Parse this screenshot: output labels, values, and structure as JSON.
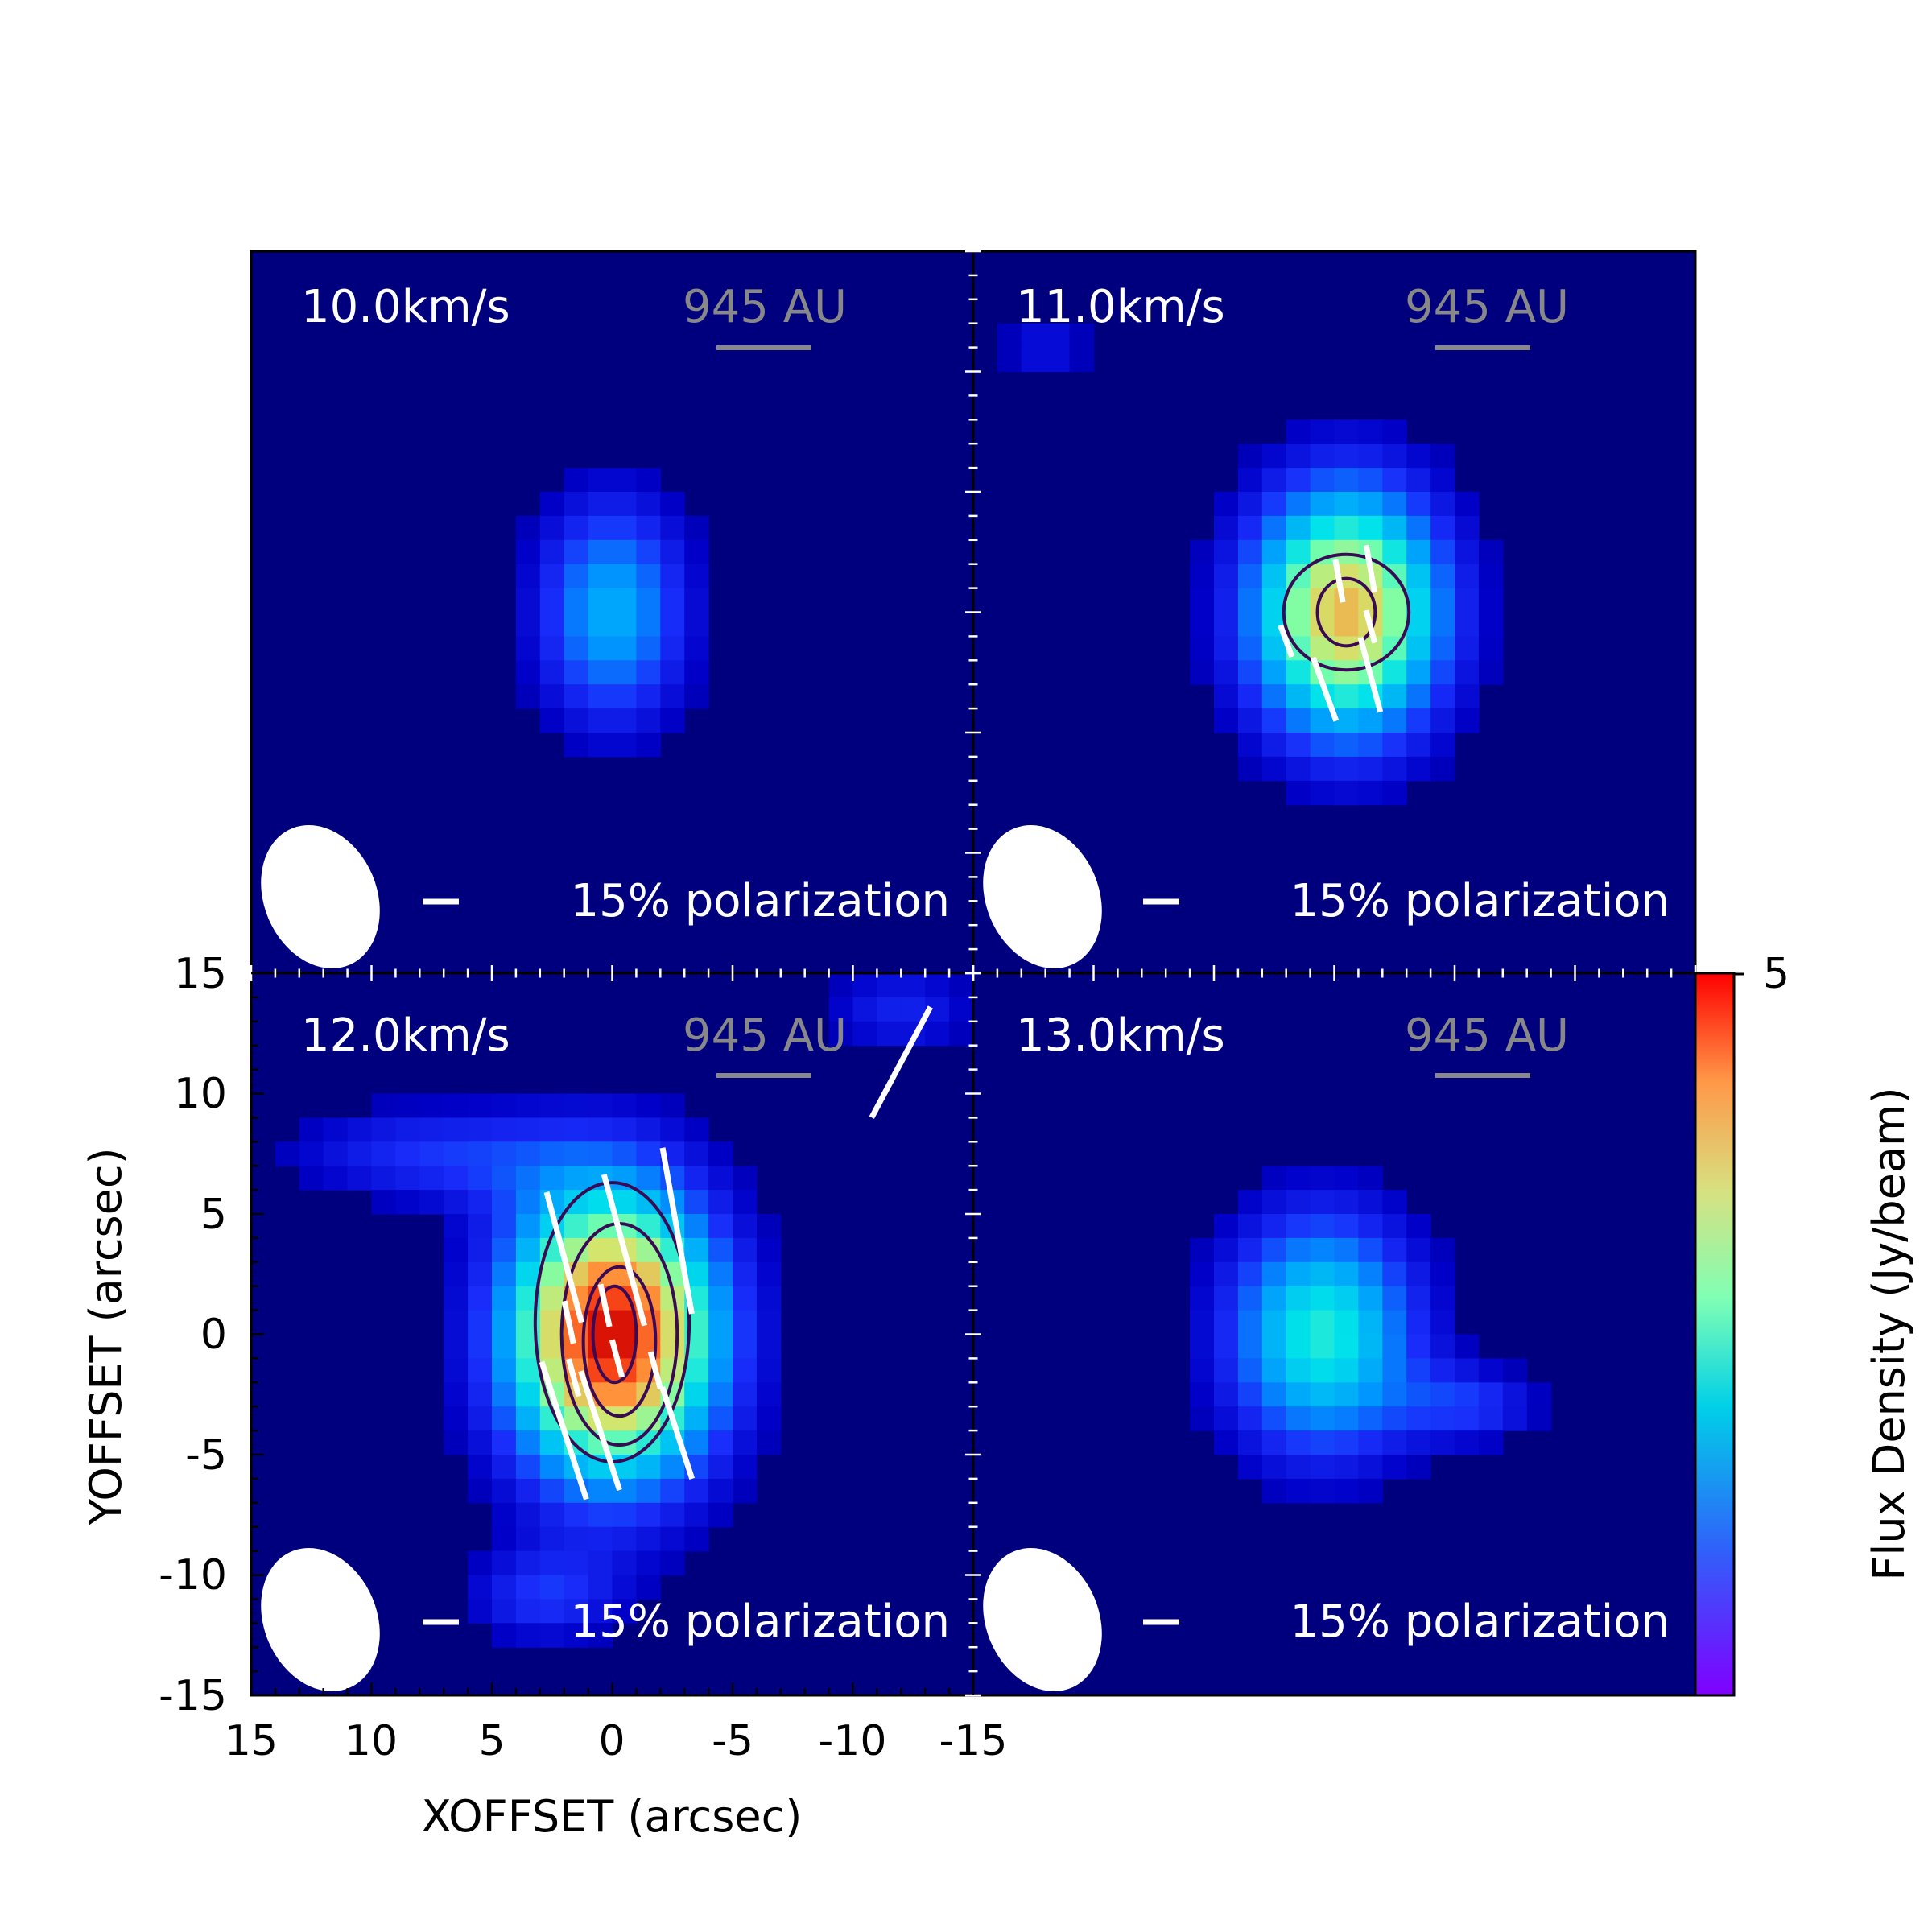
{
  "chart_data": {
    "type": "heatmap",
    "xlabel": "XOFFSET (arcsec)",
    "ylabel": "YOFFSET (arcsec)",
    "xlim": [
      15,
      -15
    ],
    "ylim": [
      -15,
      15
    ],
    "x_ticks": [
      15,
      10,
      5,
      0,
      -5,
      -10,
      -15
    ],
    "y_ticks": [
      15,
      10,
      5,
      0,
      -5,
      -10,
      -15
    ],
    "colorbar": {
      "label": "Flux Density (Jy/beam)",
      "min": 0,
      "max": 5,
      "tick_label": "5"
    },
    "scale_bar_label": "945 AU",
    "polarization_label": "15% polarization",
    "panels": [
      {
        "velocity": "10.0km/s",
        "peak_flux": 2.3,
        "blobs": [
          {
            "x": 0,
            "y": 0,
            "sx": 2.5,
            "sy": 3.8,
            "amp": 2.3
          }
        ],
        "contours": [],
        "vectors": []
      },
      {
        "velocity": "11.0km/s",
        "peak_flux": 4.1,
        "blobs": [
          {
            "x": -0.5,
            "y": 0,
            "sx": 3.2,
            "sy": 4.2,
            "amp": 4.1
          },
          {
            "x": 12,
            "y": 11,
            "sx": 1.5,
            "sy": 1.3,
            "amp": 1.0
          }
        ],
        "contours": [
          {
            "x": -0.5,
            "y": 0,
            "rx": 2.6,
            "ry": 2.4
          },
          {
            "x": -0.5,
            "y": 0,
            "rx": 1.2,
            "ry": 1.4
          }
        ],
        "vectors": [
          {
            "x": -1.5,
            "y": 1.8,
            "len": 2.0,
            "pa": 10
          },
          {
            "x": -0.2,
            "y": 1.3,
            "len": 1.8,
            "pa": 10
          },
          {
            "x": 2.0,
            "y": -1.2,
            "len": 1.4,
            "pa": 20
          },
          {
            "x": -1.5,
            "y": -0.6,
            "len": 1.4,
            "pa": 15
          },
          {
            "x": 0.4,
            "y": -3.2,
            "len": 2.8,
            "pa": 20
          },
          {
            "x": -1.5,
            "y": -2.6,
            "len": 3.2,
            "pa": 15
          }
        ]
      },
      {
        "velocity": "12.0km/s",
        "peak_flux": 5.0,
        "blobs": [
          {
            "x": 0,
            "y": 0,
            "sx": 3.5,
            "sy": 4.8,
            "amp": 5.0
          },
          {
            "x": 8,
            "y": 7.5,
            "sx": 4.5,
            "sy": 1.6,
            "amp": 1.3
          },
          {
            "x": -12,
            "y": 13.5,
            "sx": 2.5,
            "sy": 1.5,
            "amp": 1.2
          },
          {
            "x": 3,
            "y": -11,
            "sx": 2.5,
            "sy": 1.5,
            "amp": 1.2
          }
        ],
        "contours": [
          {
            "x": 0,
            "y": 0.5,
            "rx": 3.2,
            "ry": 5.8
          },
          {
            "x": -0.3,
            "y": 0,
            "rx": 2.4,
            "ry": 4.6
          },
          {
            "x": -0.3,
            "y": -0.3,
            "rx": 1.5,
            "ry": 3.1
          },
          {
            "x": -0.1,
            "y": 0,
            "rx": 0.9,
            "ry": 2.0
          }
        ],
        "vectors": [
          {
            "x": -12,
            "y": 11.3,
            "len": 5.2,
            "pa": -28
          },
          {
            "x": 2.0,
            "y": 3.2,
            "len": 5.6,
            "pa": 15
          },
          {
            "x": -0.5,
            "y": 3.5,
            "len": 6.5,
            "pa": 15
          },
          {
            "x": -2.7,
            "y": 4.3,
            "len": 7.0,
            "pa": 10
          },
          {
            "x": 2.0,
            "y": -4.0,
            "len": 6.0,
            "pa": 18
          },
          {
            "x": 0.5,
            "y": -4.0,
            "len": 5.2,
            "pa": 18
          },
          {
            "x": -2.7,
            "y": -4.1,
            "len": 4.0,
            "pa": 18
          },
          {
            "x": 1.8,
            "y": 0.5,
            "len": 1.8,
            "pa": 12
          },
          {
            "x": 0.3,
            "y": 1.2,
            "len": 1.8,
            "pa": 12
          },
          {
            "x": 1.6,
            "y": -1.8,
            "len": 1.6,
            "pa": 15
          },
          {
            "x": -0.2,
            "y": -1.0,
            "len": 1.6,
            "pa": 15
          },
          {
            "x": -1.8,
            "y": -1.5,
            "len": 1.6,
            "pa": 15
          }
        ]
      },
      {
        "velocity": "13.0km/s",
        "peak_flux": 2.9,
        "blobs": [
          {
            "x": 0.5,
            "y": 0,
            "sx": 3.2,
            "sy": 4.0,
            "amp": 2.9
          },
          {
            "x": -6,
            "y": -3,
            "sx": 2.2,
            "sy": 1.2,
            "amp": 1.2
          }
        ],
        "contours": [],
        "vectors": []
      }
    ]
  }
}
